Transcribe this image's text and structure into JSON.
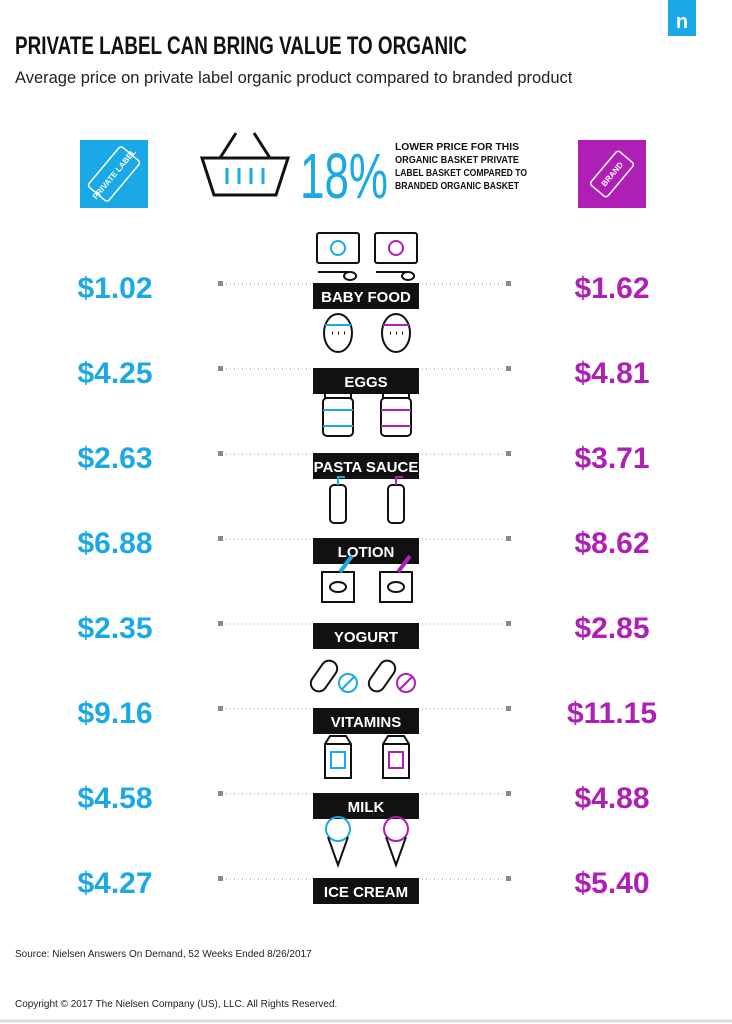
{
  "header": {
    "title": "PRIVATE LABEL CAN BRING VALUE TO ORGANIC",
    "subtitle": "Average price on private label organic product compared to branded product",
    "logo": "n"
  },
  "badges": {
    "private_label": "PRIVATE LABEL",
    "brand": "BRAND"
  },
  "highlight": {
    "figure": "18%",
    "text": [
      "LOWER PRICE FOR THIS",
      "ORGANIC BASKET PRIVATE",
      "LABEL BASKET COMPARED TO",
      "BRANDED ORGANIC BASKET"
    ]
  },
  "rows": [
    {
      "label": "BABY FOOD",
      "private_label": "$1.02",
      "brand": "$1.62"
    },
    {
      "label": "EGGS",
      "private_label": "$4.25",
      "brand": "$4.81"
    },
    {
      "label": "PASTA SAUCE",
      "private_label": "$2.63",
      "brand": "$3.71"
    },
    {
      "label": "LOTION",
      "private_label": "$6.88",
      "brand": "$8.62"
    },
    {
      "label": "YOGURT",
      "private_label": "$2.35",
      "brand": "$2.85"
    },
    {
      "label": "VITAMINS",
      "private_label": "$9.16",
      "brand": "$11.15"
    },
    {
      "label": "MILK",
      "private_label": "$4.58",
      "brand": "$4.88"
    },
    {
      "label": "ICE CREAM",
      "private_label": "$4.27",
      "brand": "$5.40"
    }
  ],
  "source": "Source: Nielsen Answers On Demand, 52 Weeks Ended 8/26/2017",
  "copyright": "Copyright © 2017 The Nielsen Company (US), LLC. All Rights Reserved."
}
